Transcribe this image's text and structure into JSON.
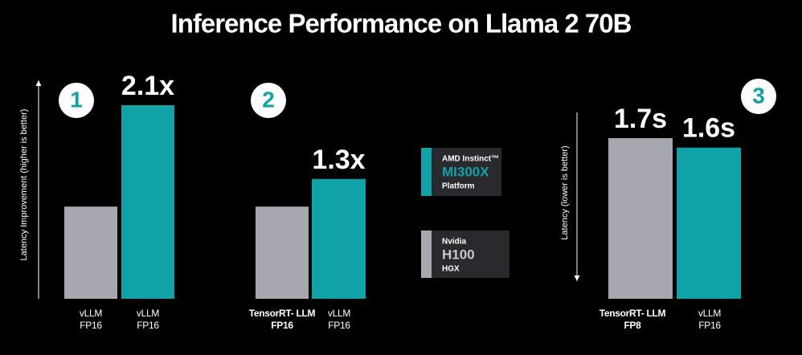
{
  "title": "Inference Performance on Llama 2 70B",
  "chart_data": [
    {
      "type": "bar",
      "badge": "1",
      "y_label": "Latency Improvement (higher is better)",
      "arrow": "up",
      "categories": [
        [
          "vLLM",
          "FP16"
        ],
        [
          "vLLM",
          "FP16"
        ]
      ],
      "bold_categories": [
        false,
        false
      ],
      "values": [
        1,
        2.1
      ],
      "value_labels": [
        null,
        "2.1x"
      ],
      "colors": [
        "#a7a7b0",
        "#10a2a6"
      ],
      "ylim": [
        0,
        2.1
      ]
    },
    {
      "type": "bar",
      "badge": "2",
      "categories": [
        [
          "TensorRT- LLM",
          "FP16"
        ],
        [
          "vLLM",
          "FP16"
        ]
      ],
      "bold_categories": [
        true,
        false
      ],
      "values": [
        1,
        1.3
      ],
      "value_labels": [
        null,
        "1.3x"
      ],
      "colors": [
        "#a7a7b0",
        "#10a2a6"
      ],
      "ylim": [
        0,
        2.1
      ]
    },
    {
      "type": "bar",
      "badge": "3",
      "y_label": "Latency (lower is better)",
      "arrow": "down",
      "categories": [
        [
          "TensorRT- LLM",
          "FP8"
        ],
        [
          "vLLM",
          "FP16"
        ]
      ],
      "bold_categories": [
        true,
        false
      ],
      "values": [
        1.7,
        1.6
      ],
      "value_labels": [
        "1.7s",
        "1.6s"
      ],
      "colors": [
        "#a7a7b0",
        "#10a2a6"
      ],
      "ylim": [
        0,
        1.7
      ]
    }
  ],
  "legend": [
    {
      "lines": [
        "AMD Instinct™",
        "MI300X",
        "Platform"
      ],
      "color": "#10a2a6",
      "text_color": "#10a2a6"
    },
    {
      "lines": [
        "Nvidia",
        "H100",
        "HGX"
      ],
      "color": "#a7a7b0",
      "text_color": "#c8c8cc"
    }
  ]
}
